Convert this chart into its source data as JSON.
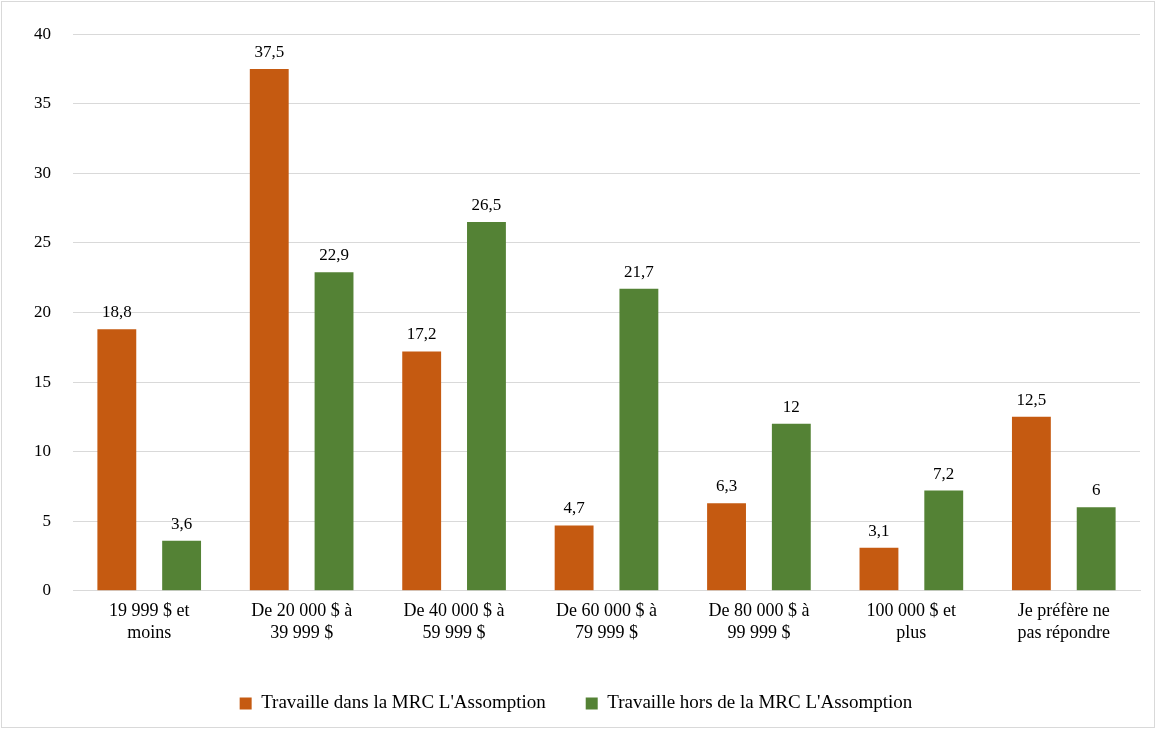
{
  "chart_data": {
    "type": "bar",
    "categories": [
      "19 999 $ et moins",
      "De 20 000 $ à 39 999 $",
      "De 40 000 $ à 59 999 $",
      "De 60 000 $ à 79 999 $",
      "De 80 000 $ à 99 999 $",
      "100 000 $ et plus",
      "Je préfère ne pas répondre"
    ],
    "series": [
      {
        "name": "Travaille dans la MRC L'Assomption",
        "color": "#c55a11",
        "values": [
          18.8,
          37.5,
          17.2,
          4.7,
          6.3,
          3.1,
          12.5
        ]
      },
      {
        "name": "Travaille hors de la MRC L'Assomption",
        "color": "#548235",
        "values": [
          3.6,
          22.9,
          26.5,
          21.7,
          12,
          7.2,
          6
        ]
      }
    ],
    "value_labels": [
      [
        "18,8",
        "37,5",
        "17,2",
        "4,7",
        "6,3",
        "3,1",
        "12,5"
      ],
      [
        "3,6",
        "22,9",
        "26,5",
        "21,7",
        "12",
        "7,2",
        "6"
      ]
    ],
    "ylim": [
      0,
      40
    ],
    "yticks": [
      0,
      5,
      10,
      15,
      20,
      25,
      30,
      35,
      40
    ],
    "grid": "y",
    "legend": "bottom"
  }
}
